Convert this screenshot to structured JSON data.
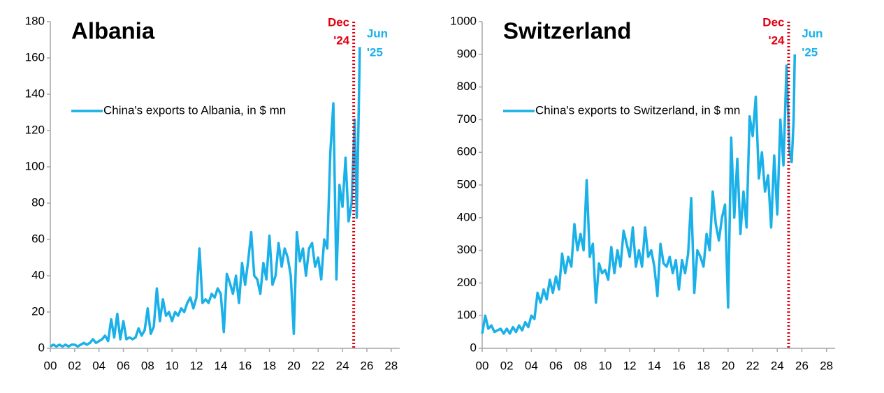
{
  "chart_data": [
    {
      "type": "line",
      "title": "Albania",
      "x": [
        0,
        0.25,
        0.5,
        0.75,
        1,
        1.25,
        1.5,
        1.75,
        2,
        2.25,
        2.5,
        2.75,
        3,
        3.25,
        3.5,
        3.75,
        4,
        4.25,
        4.5,
        4.75,
        5,
        5.25,
        5.5,
        5.75,
        6,
        6.25,
        6.5,
        6.75,
        7,
        7.25,
        7.5,
        7.75,
        8,
        8.25,
        8.5,
        8.75,
        9,
        9.25,
        9.5,
        9.75,
        10,
        10.25,
        10.5,
        10.75,
        11,
        11.25,
        11.5,
        11.75,
        12,
        12.25,
        12.5,
        12.75,
        13,
        13.25,
        13.5,
        13.75,
        14,
        14.25,
        14.5,
        14.75,
        15,
        15.25,
        15.5,
        15.75,
        16,
        16.25,
        16.5,
        16.75,
        17,
        17.25,
        17.5,
        17.75,
        18,
        18.25,
        18.5,
        18.75,
        19,
        19.25,
        19.5,
        19.75,
        20,
        20.25,
        20.5,
        20.75,
        21,
        21.25,
        21.5,
        21.75,
        22,
        22.25,
        22.5,
        22.75,
        23,
        23.25,
        23.5,
        23.75,
        24,
        24.25,
        24.5,
        24.75,
        25,
        25.17,
        25.33,
        25.42
      ],
      "series": [
        {
          "name": "China's exports to Albania, in $ mn",
          "color": "#1ab0e8",
          "values": [
            1,
            2,
            1,
            2,
            1,
            2,
            1,
            2,
            2,
            1,
            2,
            3,
            2,
            3,
            5,
            3,
            4,
            5,
            7,
            4,
            16,
            6,
            19,
            5,
            15,
            5,
            6,
            5,
            6,
            11,
            7,
            10,
            22,
            8,
            12,
            33,
            15,
            27,
            18,
            20,
            15,
            20,
            18,
            22,
            20,
            25,
            28,
            22,
            28,
            55,
            25,
            27,
            25,
            30,
            28,
            33,
            30,
            9,
            41,
            36,
            30,
            40,
            25,
            47,
            35,
            48,
            64,
            40,
            38,
            30,
            47,
            38,
            62,
            35,
            40,
            58,
            45,
            55,
            50,
            40,
            8,
            64,
            48,
            55,
            40,
            55,
            58,
            45,
            50,
            38,
            60,
            55,
            108,
            135,
            38,
            90,
            78,
            105,
            70,
            80,
            126,
            72,
            130,
            166
          ]
        }
      ],
      "xlim": [
        0,
        28.7
      ],
      "ylim": [
        0,
        180
      ],
      "xticks": [
        {
          "value": 0,
          "label": "00"
        },
        {
          "value": 2,
          "label": "02"
        },
        {
          "value": 4,
          "label": "04"
        },
        {
          "value": 6,
          "label": "06"
        },
        {
          "value": 8,
          "label": "08"
        },
        10,
        12,
        14,
        16,
        18,
        20,
        22,
        24,
        26,
        28
      ],
      "yticks": [
        0,
        20,
        40,
        60,
        80,
        100,
        120,
        140,
        160,
        180
      ],
      "vline": {
        "x": 24.92,
        "color": "#e0000f",
        "label": [
          "Dec",
          "'24"
        ]
      },
      "end_label": {
        "color": "#1ab0e8",
        "label": [
          "Jun",
          "'25"
        ]
      },
      "legend": "center-left"
    },
    {
      "type": "line",
      "title": "Switzerland",
      "x": [
        0,
        0.25,
        0.5,
        0.75,
        1,
        1.25,
        1.5,
        1.75,
        2,
        2.25,
        2.5,
        2.75,
        3,
        3.25,
        3.5,
        3.75,
        4,
        4.25,
        4.5,
        4.75,
        5,
        5.25,
        5.5,
        5.75,
        6,
        6.25,
        6.5,
        6.75,
        7,
        7.25,
        7.5,
        7.75,
        8,
        8.25,
        8.5,
        8.75,
        9,
        9.25,
        9.5,
        9.75,
        10,
        10.25,
        10.5,
        10.75,
        11,
        11.25,
        11.5,
        11.75,
        12,
        12.25,
        12.5,
        12.75,
        13,
        13.25,
        13.5,
        13.75,
        14,
        14.25,
        14.5,
        14.75,
        15,
        15.25,
        15.5,
        15.75,
        16,
        16.25,
        16.5,
        16.75,
        17,
        17.25,
        17.5,
        17.75,
        18,
        18.25,
        18.5,
        18.75,
        19,
        19.25,
        19.5,
        19.75,
        20,
        20.25,
        20.5,
        20.75,
        21,
        21.25,
        21.5,
        21.75,
        22,
        22.25,
        22.5,
        22.75,
        23,
        23.25,
        23.5,
        23.75,
        24,
        24.25,
        24.5,
        24.75,
        25,
        25.17,
        25.33,
        25.42
      ],
      "series": [
        {
          "name": "China's exports to Switzerland, in $ mn",
          "color": "#1ab0e8",
          "values": [
            45,
            100,
            60,
            70,
            50,
            55,
            60,
            45,
            60,
            45,
            65,
            50,
            70,
            55,
            80,
            65,
            100,
            90,
            170,
            140,
            180,
            150,
            210,
            170,
            220,
            180,
            290,
            230,
            280,
            250,
            380,
            300,
            350,
            300,
            515,
            280,
            320,
            140,
            260,
            230,
            240,
            210,
            310,
            230,
            300,
            250,
            360,
            320,
            280,
            370,
            250,
            300,
            250,
            370,
            280,
            300,
            250,
            160,
            320,
            260,
            250,
            280,
            230,
            270,
            180,
            270,
            230,
            290,
            460,
            170,
            300,
            280,
            250,
            350,
            300,
            480,
            380,
            330,
            400,
            440,
            125,
            645,
            400,
            580,
            350,
            480,
            370,
            710,
            650,
            770,
            520,
            600,
            480,
            530,
            370,
            590,
            410,
            700,
            560,
            865,
            600,
            570,
            700,
            900
          ]
        }
      ],
      "xlim": [
        0,
        28.7
      ],
      "ylim": [
        0,
        1000
      ],
      "xticks": [
        {
          "value": 0,
          "label": "00"
        },
        {
          "value": 2,
          "label": "02"
        },
        {
          "value": 4,
          "label": "04"
        },
        {
          "value": 6,
          "label": "06"
        },
        {
          "value": 8,
          "label": "08"
        },
        10,
        12,
        14,
        16,
        18,
        20,
        22,
        24,
        26,
        28
      ],
      "yticks": [
        0,
        100,
        200,
        300,
        400,
        500,
        600,
        700,
        800,
        900,
        1000
      ],
      "vline": {
        "x": 24.92,
        "color": "#e0000f",
        "label": [
          "Dec",
          "'24"
        ]
      },
      "end_label": {
        "color": "#1ab0e8",
        "label": [
          "Jun",
          "'25"
        ]
      },
      "legend": "center-left"
    }
  ]
}
